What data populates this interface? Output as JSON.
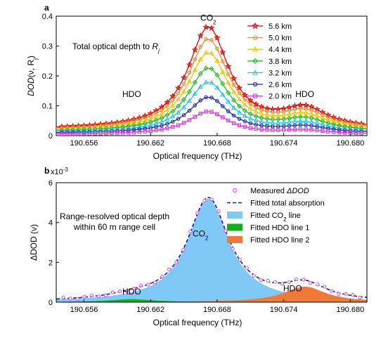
{
  "chart_data": [
    {
      "panel_label": "a",
      "type": "line",
      "annotation": "Total optical depth to",
      "annotation_symbol": "R",
      "annotation_sub": "j",
      "ylabel_main": "DOD",
      "ylabel_args": "(ν, R",
      "ylabel_sub": "j",
      "ylabel_close": ")",
      "xlabel": "Optical frequency (THz)",
      "xlim": [
        190.6535,
        190.6815
      ],
      "ylim": [
        0,
        0.4
      ],
      "xticks": [
        "190.656",
        "190.662",
        "190.668",
        "190.674",
        "190.680"
      ],
      "xtick_values": [
        190.656,
        190.662,
        190.668,
        190.674,
        190.68
      ],
      "yticks": [
        "0",
        "0.1",
        "0.2",
        "0.3",
        "0.4"
      ],
      "ytick_values": [
        0,
        0.1,
        0.2,
        0.3,
        0.4
      ],
      "peak_labels": [
        {
          "main": "CO",
          "sub": "2",
          "x": 190.6672,
          "y": 0.385
        },
        {
          "main": "HDO",
          "sub": "",
          "x": 190.6603,
          "y": 0.13
        },
        {
          "main": "HDO",
          "sub": "",
          "x": 190.6759,
          "y": 0.13
        }
      ],
      "legend_position": "top-right",
      "series": [
        {
          "name": "5.6 km",
          "color": "#e60000",
          "marker": "star",
          "peak": 0.362,
          "hdo": 0.085,
          "base": 0.02
        },
        {
          "name": "5.0 km",
          "color": "#f08a24",
          "marker": "circle",
          "peak": 0.322,
          "hdo": 0.075,
          "base": 0.018
        },
        {
          "name": "4.4 km",
          "color": "#f2c200",
          "marker": "triangle",
          "peak": 0.277,
          "hdo": 0.064,
          "base": 0.015
        },
        {
          "name": "3.8 km",
          "color": "#22bb22",
          "marker": "diamond",
          "peak": 0.225,
          "hdo": 0.052,
          "base": 0.012
        },
        {
          "name": "3.2 km",
          "color": "#22c6e6",
          "marker": "triangle",
          "peak": 0.178,
          "hdo": 0.04,
          "base": 0.009
        },
        {
          "name": "2.6 km",
          "color": "#1c2aa8",
          "marker": "circle",
          "peak": 0.128,
          "hdo": 0.029,
          "base": 0.007
        },
        {
          "name": "2.0 km",
          "color": "#d23dd2",
          "marker": "square",
          "peak": 0.08,
          "hdo": 0.017,
          "base": 0.004
        }
      ],
      "line_model": {
        "co2_center": 190.6672,
        "co2_halfwidth": 0.0022,
        "hdo_center": 190.6759,
        "hdo_halfwidth": 0.0024
      }
    },
    {
      "panel_label": "b",
      "type": "area",
      "annotation_lines": [
        "Range-resolved optical depth",
        "within 60 m range cell"
      ],
      "ylabel_main": "ΔDOD",
      "ylabel_args": "(ν)",
      "xlabel": "Optical frequency (THz)",
      "scale_factor_label": "x10",
      "scale_exponent": "-3",
      "xlim": [
        190.6535,
        190.6815
      ],
      "ylim": [
        0,
        6
      ],
      "xticks": [
        "190.656",
        "190.662",
        "190.668",
        "190.674",
        "190.680"
      ],
      "xtick_values": [
        190.656,
        190.662,
        190.668,
        190.674,
        190.68
      ],
      "yticks": [
        "0",
        "2",
        "4",
        "6"
      ],
      "ytick_values": [
        0,
        2,
        4,
        6
      ],
      "area_labels": [
        {
          "main": "CO",
          "sub": "2",
          "x": 190.6665,
          "y": 3.3,
          "color": "#000000"
        },
        {
          "main": "HDO",
          "sub": "",
          "x": 190.6603,
          "y": 0.38,
          "color": "#000000"
        },
        {
          "main": "HDO",
          "sub": "",
          "x": 190.6748,
          "y": 0.55,
          "color": "#000000"
        }
      ],
      "legend_position": "top-right",
      "legend": [
        {
          "kind": "marker",
          "text": "Measured ",
          "symbol": "ΔDOD",
          "sub": "",
          "color": "#e040e0"
        },
        {
          "kind": "dash",
          "text": "Fitted total absorption",
          "symbol": "",
          "sub": "",
          "color": "#1a1a8c"
        },
        {
          "kind": "area",
          "text": "Fitted CO",
          "symbol": "",
          "sub": "2",
          "tail": " line",
          "color": "#80c8f5"
        },
        {
          "kind": "area",
          "text": "Fitted HDO line 1",
          "symbol": "",
          "sub": "",
          "color": "#11b11a"
        },
        {
          "kind": "area",
          "text": "Fitted HDO line 2",
          "symbol": "",
          "sub": "",
          "color": "#ee7a3a"
        }
      ],
      "components": {
        "co2": {
          "center": 190.6672,
          "halfwidth": 0.00225,
          "amplitude": 5.2
        },
        "hdo1": {
          "center": 190.6603,
          "halfwidth": 0.0024,
          "amplitude": 0.15
        },
        "hdo2": {
          "center": 190.6759,
          "halfwidth": 0.0023,
          "amplitude": 0.78
        }
      },
      "colors": {
        "co2": "#80c8f5",
        "hdo1": "#11b11a",
        "hdo2": "#ee7a3a",
        "total": "#1a1a8c",
        "measured": "#e040e0"
      }
    }
  ]
}
